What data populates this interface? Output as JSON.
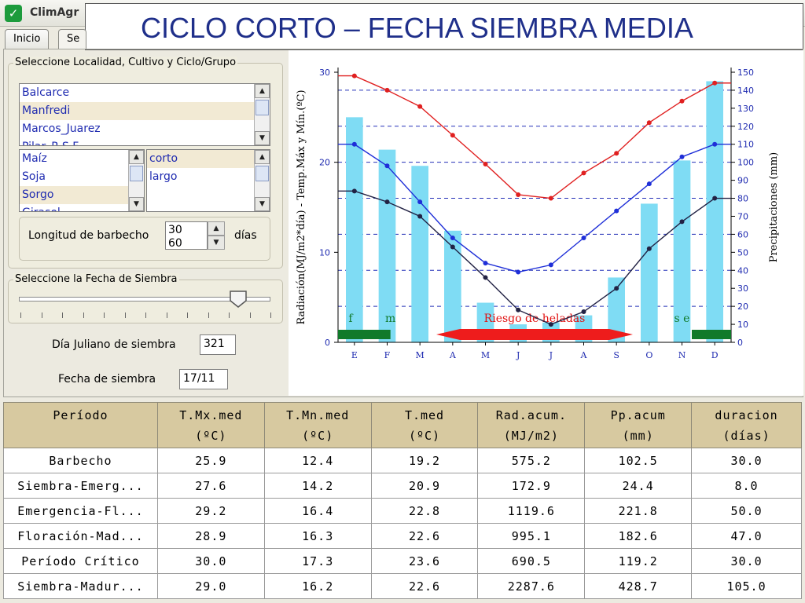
{
  "app": {
    "name": "ClimAgr",
    "title": "CICLO CORTO – FECHA SIEMBRA MEDIA"
  },
  "tabs": [
    {
      "label": "Inicio"
    },
    {
      "label": "Se"
    }
  ],
  "selection": {
    "title": "Seleccione Localidad, Cultivo y Ciclo/Grupo",
    "localidades": [
      "Balcarce",
      "Manfredi",
      "Marcos_Juarez",
      "Pilar_R.S.F."
    ],
    "localidad_selected": "Manfredi",
    "cultivos": [
      "Maíz",
      "Soja",
      "Sorgo",
      "Girasol"
    ],
    "cultivo_selected": "Sorgo",
    "ciclos": [
      "corto",
      "largo"
    ],
    "ciclo_selected": "corto",
    "barbecho_label": "Longitud de barbecho",
    "barbecho_values": [
      "30",
      "60"
    ],
    "barbecho_unit": "días"
  },
  "sowing": {
    "title": "Seleccione la Fecha de Siembra",
    "slider_fraction": 0.9,
    "dia_juliano_label": "Día Juliano de siembra",
    "dia_juliano_value": "321",
    "fecha_label": "Fecha de siembra",
    "fecha_value": "17/11"
  },
  "chart_data": {
    "type": "line",
    "categories": [
      "E",
      "F",
      "M",
      "A",
      "M",
      "J",
      "J",
      "A",
      "S",
      "O",
      "N",
      "D"
    ],
    "ylabel": "Radiación(MJ/m2*día) - Temp.Máx y Mín.(ºC)",
    "y2label": "Precipitaciones (mm)",
    "ylim": [
      0,
      30
    ],
    "yticks": [
      0,
      10,
      20,
      30
    ],
    "y2lim": [
      0,
      150
    ],
    "y2ticks": [
      0,
      10,
      20,
      30,
      40,
      50,
      60,
      70,
      80,
      90,
      100,
      110,
      120,
      130,
      140,
      150
    ],
    "grid": "dashed horizontal",
    "series": [
      {
        "values": [
          29.6,
          28.0,
          26.2,
          23.0,
          19.8,
          16.4,
          16.0,
          18.8,
          21.0,
          24.4,
          26.8,
          28.8
        ],
        "color": "#e02020",
        "axis": "left",
        "kind": "line"
      },
      {
        "values": [
          22.0,
          19.6,
          15.6,
          11.6,
          8.8,
          7.8,
          8.6,
          11.6,
          14.6,
          17.6,
          20.6,
          22.0
        ],
        "color": "#1f2fd8",
        "axis": "left",
        "kind": "line"
      },
      {
        "values": [
          16.8,
          15.6,
          14.0,
          10.6,
          7.2,
          3.6,
          2.0,
          3.4,
          6.0,
          10.4,
          13.4,
          16.0
        ],
        "color": "#222244",
        "axis": "left",
        "kind": "line"
      },
      {
        "values": [
          125,
          107,
          98,
          62,
          22,
          10,
          11,
          15,
          36,
          77,
          101,
          145
        ],
        "color": "#7fdcf4",
        "axis": "right",
        "kind": "bar"
      }
    ],
    "annotations": [
      {
        "text": "f",
        "month_from": 0,
        "month_to": 0
      },
      {
        "text": "m",
        "month_from": 1.6,
        "month_to": 1.6
      },
      {
        "text": "Riesgo de heladas",
        "month_from": 3.0,
        "month_to": 9.0
      },
      {
        "text": "s e",
        "month_from": 10.5,
        "month_to": 11.0
      }
    ],
    "bars_green": [
      {
        "from": 0,
        "to": 1.6
      },
      {
        "from": 10.8,
        "to": 12
      }
    ],
    "frost_range": {
      "from": 3.0,
      "to": 9.0
    }
  },
  "table": {
    "headers": [
      [
        "Período",
        ""
      ],
      [
        "T.Mx.med",
        "(ºC)"
      ],
      [
        "T.Mn.med",
        "(ºC)"
      ],
      [
        "T.med",
        "(ºC)"
      ],
      [
        "Rad.acum.",
        "(MJ/m2)"
      ],
      [
        "Pp.acum",
        "(mm)"
      ],
      [
        "duracion",
        "(días)"
      ]
    ],
    "rows": [
      [
        "Barbecho",
        "25.9",
        "12.4",
        "19.2",
        "575.2",
        "102.5",
        "30.0"
      ],
      [
        "Siembra-Emerg...",
        "27.6",
        "14.2",
        "20.9",
        "172.9",
        "24.4",
        "8.0"
      ],
      [
        "Emergencia-Fl...",
        "29.2",
        "16.4",
        "22.8",
        "1119.6",
        "221.8",
        "50.0"
      ],
      [
        "Floración-Mad...",
        "28.9",
        "16.3",
        "22.6",
        "995.1",
        "182.6",
        "47.0"
      ],
      [
        "Período Crítico",
        "30.0",
        "17.3",
        "23.6",
        "690.5",
        "119.2",
        "30.0"
      ],
      [
        "Siembra-Madur...",
        "29.0",
        "16.2",
        "22.6",
        "2287.6",
        "428.7",
        "105.0"
      ]
    ]
  }
}
